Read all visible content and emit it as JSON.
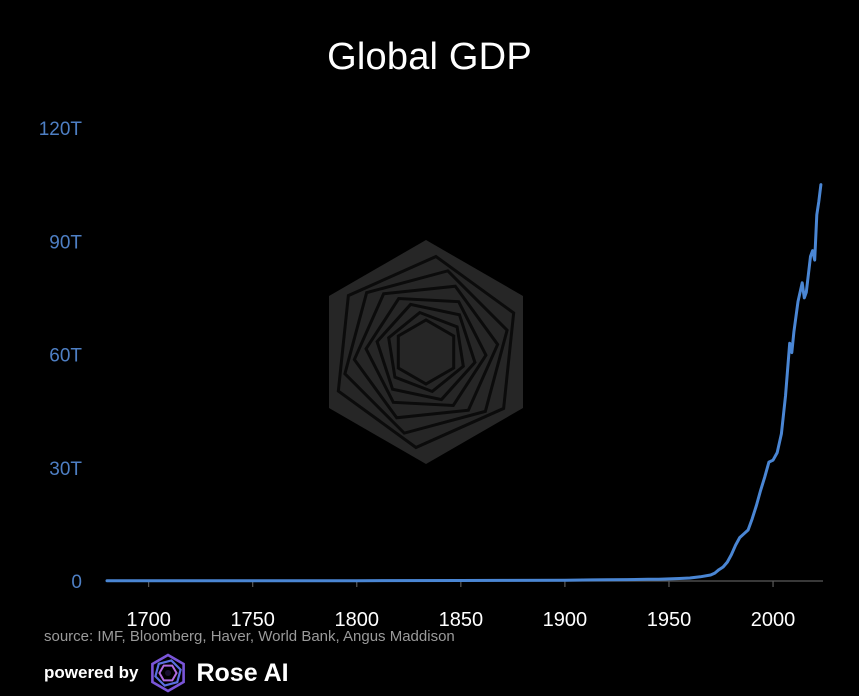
{
  "title": "Global GDP",
  "source_text": "source: IMF, Bloomberg, Haver, World Bank, Angus Maddison",
  "powered_by": {
    "label": "powered by",
    "brand": "Rose AI"
  },
  "colors": {
    "background": "#000000",
    "line": "#4a86d4",
    "ytick": "#4e7fc4",
    "xtick": "#ffffff",
    "source": "#9a9a9a"
  },
  "chart_data": {
    "type": "line",
    "title": "Global GDP",
    "xlabel": "",
    "ylabel": "",
    "xlim": [
      1680,
      2024
    ],
    "ylim": [
      0,
      120000000000000
    ],
    "grid": false,
    "legend": "none",
    "yticks": [
      {
        "value": 0,
        "label": "0"
      },
      {
        "value": 30000000000000,
        "label": "30T"
      },
      {
        "value": 60000000000000,
        "label": "60T"
      },
      {
        "value": 90000000000000,
        "label": "90T"
      },
      {
        "value": 120000000000000,
        "label": "120T"
      }
    ],
    "xticks": [
      {
        "value": 1700,
        "label": "1700"
      },
      {
        "value": 1750,
        "label": "1750"
      },
      {
        "value": 1800,
        "label": "1800"
      },
      {
        "value": 1850,
        "label": "1850"
      },
      {
        "value": 1900,
        "label": "1900"
      },
      {
        "value": 1950,
        "label": "1950"
      },
      {
        "value": 2000,
        "label": "2000"
      }
    ],
    "series": [
      {
        "color": "#4a86d4",
        "x": [
          1680,
          1700,
          1750,
          1800,
          1850,
          1870,
          1900,
          1913,
          1920,
          1930,
          1940,
          1945,
          1950,
          1955,
          1960,
          1965,
          1970,
          1972,
          1974,
          1976,
          1978,
          1980,
          1982,
          1984,
          1986,
          1988,
          1990,
          1992,
          1994,
          1996,
          1998,
          2000,
          2002,
          2004,
          2006,
          2008,
          2009,
          2010,
          2012,
          2014,
          2015,
          2016,
          2018,
          2019,
          2020,
          2021,
          2022,
          2023
        ],
        "y": [
          0.05,
          0.06,
          0.07,
          0.09,
          0.13,
          0.15,
          0.22,
          0.28,
          0.32,
          0.38,
          0.45,
          0.48,
          0.55,
          0.65,
          0.8,
          1.1,
          1.6,
          2.1,
          3.0,
          3.7,
          5.0,
          7.0,
          9.5,
          11.5,
          12.5,
          13.5,
          16.5,
          20.0,
          24.0,
          27.5,
          31.5,
          32.0,
          34.0,
          39.0,
          49.0,
          63.0,
          60.5,
          66.0,
          74.0,
          79.0,
          75.0,
          76.5,
          86.0,
          87.5,
          85.0,
          97.0,
          100.5,
          105.0
        ]
      }
    ]
  }
}
